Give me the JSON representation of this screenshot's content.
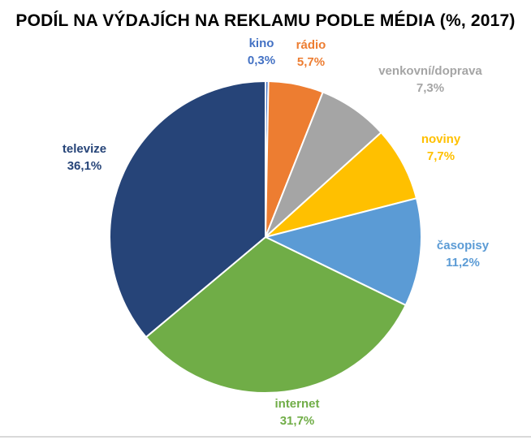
{
  "chart_data": {
    "type": "pie",
    "title": "PODÍL NA VÝDAJÍCH NA REKLAMU PODLE MÉDIA (%, 2017)",
    "start_angle_deg": 0,
    "direction": "clockwise",
    "slices": [
      {
        "name": "kino",
        "value": 0.3,
        "value_label": "0,3%",
        "color": "#4472c4"
      },
      {
        "name": "rádio",
        "value": 5.7,
        "value_label": "5,7%",
        "color": "#ed7d31"
      },
      {
        "name": "venkovní/doprava",
        "value": 7.3,
        "value_label": "7,3%",
        "color": "#a5a5a5"
      },
      {
        "name": "noviny",
        "value": 7.7,
        "value_label": "7,7%",
        "color": "#ffc000"
      },
      {
        "name": "časopisy",
        "value": 11.2,
        "value_label": "11,2%",
        "color": "#5b9bd5"
      },
      {
        "name": "internet",
        "value": 31.7,
        "value_label": "31,7%",
        "color": "#70ad47"
      },
      {
        "name": "televize",
        "value": 36.1,
        "value_label": "36,1%",
        "color": "#264478"
      }
    ]
  }
}
